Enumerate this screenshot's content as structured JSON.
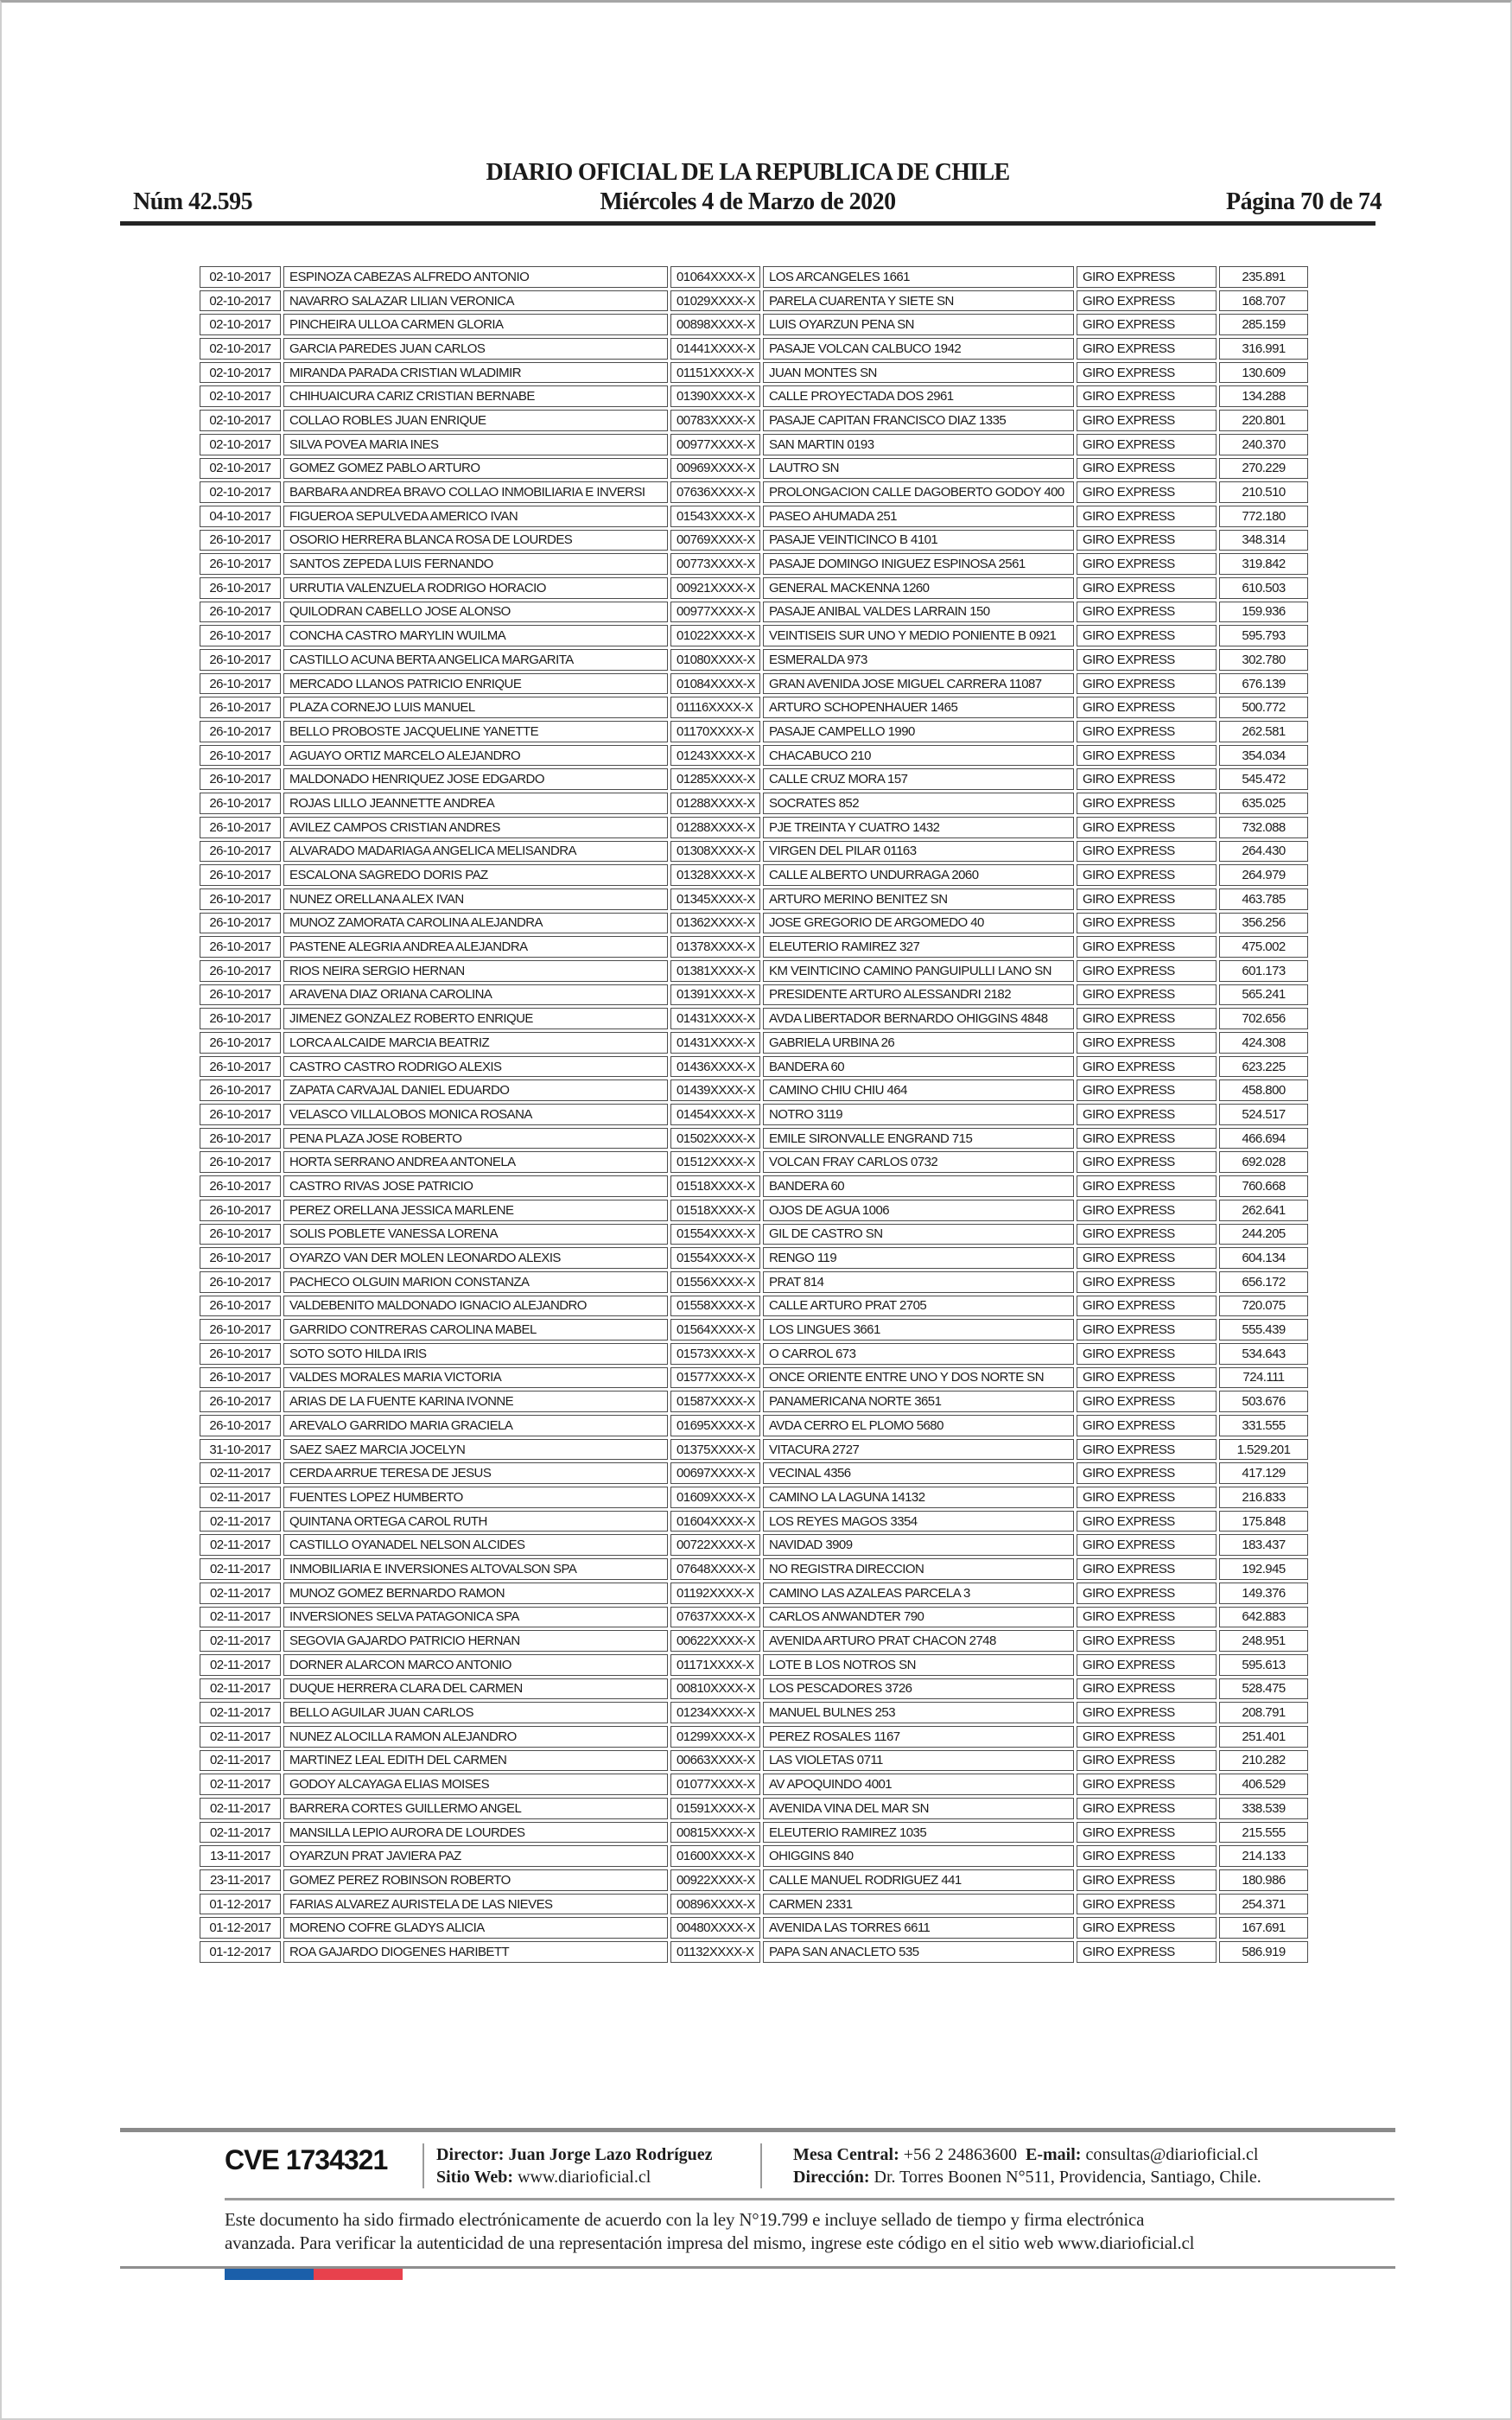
{
  "header": {
    "issue": "Núm 42.595",
    "title": "DIARIO OFICIAL DE LA REPUBLICA DE CHILE",
    "date": "Miércoles 4 de Marzo de 2020",
    "page_indicator": "Página 70 de 74"
  },
  "table": {
    "columns": [
      "date",
      "name",
      "id",
      "address",
      "service",
      "amount"
    ],
    "rows": [
      [
        "02-10-2017",
        "ESPINOZA CABEZAS ALFREDO ANTONIO",
        "01064XXXX-X",
        "LOS ARCANGELES 1661",
        "GIRO EXPRESS",
        "235.891"
      ],
      [
        "02-10-2017",
        "NAVARRO SALAZAR LILIAN VERONICA",
        "01029XXXX-X",
        "PARELA CUARENTA Y SIETE SN",
        "GIRO EXPRESS",
        "168.707"
      ],
      [
        "02-10-2017",
        "PINCHEIRA ULLOA CARMEN GLORIA",
        "00898XXXX-X",
        "LUIS OYARZUN PENA SN",
        "GIRO EXPRESS",
        "285.159"
      ],
      [
        "02-10-2017",
        "GARCIA PAREDES JUAN CARLOS",
        "01441XXXX-X",
        "PASAJE VOLCAN CALBUCO 1942",
        "GIRO EXPRESS",
        "316.991"
      ],
      [
        "02-10-2017",
        "MIRANDA PARADA CRISTIAN WLADIMIR",
        "01151XXXX-X",
        "JUAN MONTES SN",
        "GIRO EXPRESS",
        "130.609"
      ],
      [
        "02-10-2017",
        "CHIHUAICURA CARIZ CRISTIAN BERNABE",
        "01390XXXX-X",
        "CALLE PROYECTADA DOS 2961",
        "GIRO EXPRESS",
        "134.288"
      ],
      [
        "02-10-2017",
        "COLLAO ROBLES JUAN ENRIQUE",
        "00783XXXX-X",
        "PASAJE CAPITAN FRANCISCO DIAZ 1335",
        "GIRO EXPRESS",
        "220.801"
      ],
      [
        "02-10-2017",
        "SILVA POVEA MARIA INES",
        "00977XXXX-X",
        "SAN MARTIN 0193",
        "GIRO EXPRESS",
        "240.370"
      ],
      [
        "02-10-2017",
        "GOMEZ GOMEZ PABLO ARTURO",
        "00969XXXX-X",
        "LAUTRO SN",
        "GIRO EXPRESS",
        "270.229"
      ],
      [
        "02-10-2017",
        "BARBARA ANDREA BRAVO COLLAO INMOBILIARIA E INVERSI",
        "07636XXXX-X",
        "PROLONGACION CALLE DAGOBERTO GODOY 400",
        "GIRO EXPRESS",
        "210.510"
      ],
      [
        "04-10-2017",
        "FIGUEROA SEPULVEDA AMERICO IVAN",
        "01543XXXX-X",
        "PASEO AHUMADA 251",
        "GIRO EXPRESS",
        "772.180"
      ],
      [
        "26-10-2017",
        "OSORIO HERRERA BLANCA ROSA DE LOURDES",
        "00769XXXX-X",
        "PASAJE VEINTICINCO B 4101",
        "GIRO EXPRESS",
        "348.314"
      ],
      [
        "26-10-2017",
        "SANTOS ZEPEDA LUIS FERNANDO",
        "00773XXXX-X",
        "PASAJE DOMINGO INIGUEZ ESPINOSA 2561",
        "GIRO EXPRESS",
        "319.842"
      ],
      [
        "26-10-2017",
        "URRUTIA VALENZUELA RODRIGO HORACIO",
        "00921XXXX-X",
        "GENERAL MACKENNA 1260",
        "GIRO EXPRESS",
        "610.503"
      ],
      [
        "26-10-2017",
        "QUILODRAN CABELLO JOSE ALONSO",
        "00977XXXX-X",
        "PASAJE ANIBAL VALDES LARRAIN 150",
        "GIRO EXPRESS",
        "159.936"
      ],
      [
        "26-10-2017",
        "CONCHA CASTRO MARYLIN WUILMA",
        "01022XXXX-X",
        "VEINTISEIS SUR UNO Y MEDIO PONIENTE B 0921",
        "GIRO EXPRESS",
        "595.793"
      ],
      [
        "26-10-2017",
        "CASTILLO ACUNA BERTA ANGELICA MARGARITA",
        "01080XXXX-X",
        "ESMERALDA 973",
        "GIRO EXPRESS",
        "302.780"
      ],
      [
        "26-10-2017",
        "MERCADO LLANOS PATRICIO ENRIQUE",
        "01084XXXX-X",
        "GRAN AVENIDA JOSE MIGUEL CARRERA 11087",
        "GIRO EXPRESS",
        "676.139"
      ],
      [
        "26-10-2017",
        "PLAZA CORNEJO LUIS MANUEL",
        "01116XXXX-X",
        "ARTURO SCHOPENHAUER 1465",
        "GIRO EXPRESS",
        "500.772"
      ],
      [
        "26-10-2017",
        "BELLO PROBOSTE JACQUELINE YANETTE",
        "01170XXXX-X",
        "PASAJE CAMPELLO 1990",
        "GIRO EXPRESS",
        "262.581"
      ],
      [
        "26-10-2017",
        "AGUAYO ORTIZ MARCELO ALEJANDRO",
        "01243XXXX-X",
        "CHACABUCO 210",
        "GIRO EXPRESS",
        "354.034"
      ],
      [
        "26-10-2017",
        "MALDONADO HENRIQUEZ JOSE EDGARDO",
        "01285XXXX-X",
        "CALLE CRUZ MORA 157",
        "GIRO EXPRESS",
        "545.472"
      ],
      [
        "26-10-2017",
        "ROJAS LILLO JEANNETTE ANDREA",
        "01288XXXX-X",
        "SOCRATES 852",
        "GIRO EXPRESS",
        "635.025"
      ],
      [
        "26-10-2017",
        "AVILEZ CAMPOS CRISTIAN ANDRES",
        "01288XXXX-X",
        "PJE TREINTA Y CUATRO 1432",
        "GIRO EXPRESS",
        "732.088"
      ],
      [
        "26-10-2017",
        "ALVARADO MADARIAGA ANGELICA MELISANDRA",
        "01308XXXX-X",
        "VIRGEN DEL PILAR 01163",
        "GIRO EXPRESS",
        "264.430"
      ],
      [
        "26-10-2017",
        "ESCALONA SAGREDO DORIS PAZ",
        "01328XXXX-X",
        "CALLE ALBERTO UNDURRAGA 2060",
        "GIRO EXPRESS",
        "264.979"
      ],
      [
        "26-10-2017",
        "NUNEZ ORELLANA ALEX IVAN",
        "01345XXXX-X",
        "ARTURO MERINO BENITEZ SN",
        "GIRO EXPRESS",
        "463.785"
      ],
      [
        "26-10-2017",
        "MUNOZ ZAMORATA CAROLINA ALEJANDRA",
        "01362XXXX-X",
        "JOSE GREGORIO DE ARGOMEDO 40",
        "GIRO EXPRESS",
        "356.256"
      ],
      [
        "26-10-2017",
        "PASTENE ALEGRIA ANDREA ALEJANDRA",
        "01378XXXX-X",
        "ELEUTERIO RAMIREZ 327",
        "GIRO EXPRESS",
        "475.002"
      ],
      [
        "26-10-2017",
        "RIOS NEIRA SERGIO HERNAN",
        "01381XXXX-X",
        "KM VEINTICINO CAMINO PANGUIPULLI LANO SN",
        "GIRO EXPRESS",
        "601.173"
      ],
      [
        "26-10-2017",
        "ARAVENA DIAZ ORIANA CAROLINA",
        "01391XXXX-X",
        "PRESIDENTE ARTURO ALESSANDRI 2182",
        "GIRO EXPRESS",
        "565.241"
      ],
      [
        "26-10-2017",
        "JIMENEZ GONZALEZ ROBERTO ENRIQUE",
        "01431XXXX-X",
        "AVDA LIBERTADOR BERNARDO OHIGGINS 4848",
        "GIRO EXPRESS",
        "702.656"
      ],
      [
        "26-10-2017",
        "LORCA ALCAIDE MARCIA BEATRIZ",
        "01431XXXX-X",
        "GABRIELA URBINA 26",
        "GIRO EXPRESS",
        "424.308"
      ],
      [
        "26-10-2017",
        "CASTRO CASTRO RODRIGO ALEXIS",
        "01436XXXX-X",
        "BANDERA 60",
        "GIRO EXPRESS",
        "623.225"
      ],
      [
        "26-10-2017",
        "ZAPATA CARVAJAL DANIEL EDUARDO",
        "01439XXXX-X",
        "CAMINO CHIU CHIU 464",
        "GIRO EXPRESS",
        "458.800"
      ],
      [
        "26-10-2017",
        "VELASCO VILLALOBOS MONICA ROSANA",
        "01454XXXX-X",
        "NOTRO 3119",
        "GIRO EXPRESS",
        "524.517"
      ],
      [
        "26-10-2017",
        "PENA PLAZA JOSE ROBERTO",
        "01502XXXX-X",
        "EMILE SIRONVALLE ENGRAND 715",
        "GIRO EXPRESS",
        "466.694"
      ],
      [
        "26-10-2017",
        "HORTA SERRANO ANDREA ANTONELA",
        "01512XXXX-X",
        "VOLCAN FRAY CARLOS 0732",
        "GIRO EXPRESS",
        "692.028"
      ],
      [
        "26-10-2017",
        "CASTRO RIVAS JOSE PATRICIO",
        "01518XXXX-X",
        "BANDERA 60",
        "GIRO EXPRESS",
        "760.668"
      ],
      [
        "26-10-2017",
        "PEREZ ORELLANA JESSICA MARLENE",
        "01518XXXX-X",
        "OJOS DE AGUA 1006",
        "GIRO EXPRESS",
        "262.641"
      ],
      [
        "26-10-2017",
        "SOLIS POBLETE VANESSA LORENA",
        "01554XXXX-X",
        "GIL DE CASTRO SN",
        "GIRO EXPRESS",
        "244.205"
      ],
      [
        "26-10-2017",
        "OYARZO VAN DER MOLEN LEONARDO ALEXIS",
        "01554XXXX-X",
        "RENGO 119",
        "GIRO EXPRESS",
        "604.134"
      ],
      [
        "26-10-2017",
        "PACHECO OLGUIN MARION CONSTANZA",
        "01556XXXX-X",
        "PRAT 814",
        "GIRO EXPRESS",
        "656.172"
      ],
      [
        "26-10-2017",
        "VALDEBENITO MALDONADO IGNACIO ALEJANDRO",
        "01558XXXX-X",
        "CALLE ARTURO PRAT 2705",
        "GIRO EXPRESS",
        "720.075"
      ],
      [
        "26-10-2017",
        "GARRIDO CONTRERAS CAROLINA MABEL",
        "01564XXXX-X",
        "LOS LINGUES 3661",
        "GIRO EXPRESS",
        "555.439"
      ],
      [
        "26-10-2017",
        "SOTO SOTO HILDA IRIS",
        "01573XXXX-X",
        "O CARROL 673",
        "GIRO EXPRESS",
        "534.643"
      ],
      [
        "26-10-2017",
        "VALDES MORALES MARIA VICTORIA",
        "01577XXXX-X",
        "ONCE ORIENTE ENTRE UNO Y DOS NORTE SN",
        "GIRO EXPRESS",
        "724.111"
      ],
      [
        "26-10-2017",
        "ARIAS DE LA FUENTE KARINA IVONNE",
        "01587XXXX-X",
        "PANAMERICANA NORTE 3651",
        "GIRO EXPRESS",
        "503.676"
      ],
      [
        "26-10-2017",
        "AREVALO GARRIDO MARIA GRACIELA",
        "01695XXXX-X",
        "AVDA CERRO EL PLOMO 5680",
        "GIRO EXPRESS",
        "331.555"
      ],
      [
        "31-10-2017",
        "SAEZ SAEZ MARCIA JOCELYN",
        "01375XXXX-X",
        "VITACURA 2727",
        "GIRO EXPRESS",
        "1.529.201"
      ],
      [
        "02-11-2017",
        "CERDA ARRUE TERESA DE JESUS",
        "00697XXXX-X",
        "VECINAL 4356",
        "GIRO EXPRESS",
        "417.129"
      ],
      [
        "02-11-2017",
        "FUENTES LOPEZ HUMBERTO",
        "01609XXXX-X",
        "CAMINO LA LAGUNA 14132",
        "GIRO EXPRESS",
        "216.833"
      ],
      [
        "02-11-2017",
        "QUINTANA ORTEGA CAROL RUTH",
        "01604XXXX-X",
        "LOS REYES MAGOS 3354",
        "GIRO EXPRESS",
        "175.848"
      ],
      [
        "02-11-2017",
        "CASTILLO OYANADEL NELSON ALCIDES",
        "00722XXXX-X",
        "NAVIDAD 3909",
        "GIRO EXPRESS",
        "183.437"
      ],
      [
        "02-11-2017",
        "INMOBILIARIA E INVERSIONES ALTOVALSON SPA",
        "07648XXXX-X",
        "NO REGISTRA DIRECCION",
        "GIRO EXPRESS",
        "192.945"
      ],
      [
        "02-11-2017",
        "MUNOZ GOMEZ BERNARDO RAMON",
        "01192XXXX-X",
        "CAMINO LAS AZALEAS PARCELA 3",
        "GIRO EXPRESS",
        "149.376"
      ],
      [
        "02-11-2017",
        "INVERSIONES SELVA PATAGONICA SPA",
        "07637XXXX-X",
        "CARLOS ANWANDTER 790",
        "GIRO EXPRESS",
        "642.883"
      ],
      [
        "02-11-2017",
        "SEGOVIA GAJARDO PATRICIO HERNAN",
        "00622XXXX-X",
        "AVENIDA ARTURO PRAT CHACON 2748",
        "GIRO EXPRESS",
        "248.951"
      ],
      [
        "02-11-2017",
        "DORNER ALARCON MARCO ANTONIO",
        "01171XXXX-X",
        "LOTE B LOS NOTROS SN",
        "GIRO EXPRESS",
        "595.613"
      ],
      [
        "02-11-2017",
        "DUQUE HERRERA CLARA DEL CARMEN",
        "00810XXXX-X",
        "LOS PESCADORES 3726",
        "GIRO EXPRESS",
        "528.475"
      ],
      [
        "02-11-2017",
        "BELLO AGUILAR JUAN CARLOS",
        "01234XXXX-X",
        "MANUEL BULNES 253",
        "GIRO EXPRESS",
        "208.791"
      ],
      [
        "02-11-2017",
        "NUNEZ ALOCILLA RAMON ALEJANDRO",
        "01299XXXX-X",
        "PEREZ ROSALES 1167",
        "GIRO EXPRESS",
        "251.401"
      ],
      [
        "02-11-2017",
        "MARTINEZ LEAL EDITH DEL CARMEN",
        "00663XXXX-X",
        "LAS VIOLETAS 0711",
        "GIRO EXPRESS",
        "210.282"
      ],
      [
        "02-11-2017",
        "GODOY ALCAYAGA ELIAS MOISES",
        "01077XXXX-X",
        "AV APOQUINDO 4001",
        "GIRO EXPRESS",
        "406.529"
      ],
      [
        "02-11-2017",
        "BARRERA CORTES GUILLERMO ANGEL",
        "01591XXXX-X",
        "AVENIDA VINA DEL MAR SN",
        "GIRO EXPRESS",
        "338.539"
      ],
      [
        "02-11-2017",
        "MANSILLA LEPIO AURORA DE LOURDES",
        "00815XXXX-X",
        "ELEUTERIO RAMIREZ 1035",
        "GIRO EXPRESS",
        "215.555"
      ],
      [
        "13-11-2017",
        "OYARZUN PRAT JAVIERA PAZ",
        "01600XXXX-X",
        "OHIGGINS 840",
        "GIRO EXPRESS",
        "214.133"
      ],
      [
        "23-11-2017",
        "GOMEZ PEREZ ROBINSON ROBERTO",
        "00922XXXX-X",
        "CALLE MANUEL RODRIGUEZ 441",
        "GIRO EXPRESS",
        "180.986"
      ],
      [
        "01-12-2017",
        "FARIAS ALVAREZ AURISTELA DE LAS NIEVES",
        "00896XXXX-X",
        "CARMEN 2331",
        "GIRO EXPRESS",
        "254.371"
      ],
      [
        "01-12-2017",
        "MORENO COFRE GLADYS ALICIA",
        "00480XXXX-X",
        "AVENIDA LAS TORRES 6611",
        "GIRO EXPRESS",
        "167.691"
      ],
      [
        "01-12-2017",
        "ROA GAJARDO DIOGENES HARIBETT",
        "01132XXXX-X",
        "PAPA SAN ANACLETO 535",
        "GIRO EXPRESS",
        "586.919"
      ]
    ]
  },
  "footer": {
    "cve": "CVE 1734321",
    "director_label": "Director:",
    "director_name": "Juan Jorge Lazo Rodríguez",
    "sitio_label": "Sitio Web:",
    "sitio_value": "www.diarioficial.cl",
    "mesa_label": "Mesa Central:",
    "mesa_value": "+56 2 24863600",
    "email_label": "E-mail:",
    "email_value": "consultas@diarioficial.cl",
    "direccion_label": "Dirección:",
    "direccion_value": "Dr. Torres Boonen N°511, Providencia, Santiago, Chile."
  },
  "legal": {
    "line1": "Este documento ha sido firmado electrónicamente de acuerdo con la ley N°19.799 e incluye sellado de tiempo y firma electrónica",
    "line2": "avanzada. Para verificar la autenticidad de una representación impresa del mismo, ingrese este código en el sitio web www.diarioficial.cl"
  },
  "colors": {
    "flag_blue": "#1b5faa",
    "flag_red": "#e8414d"
  }
}
